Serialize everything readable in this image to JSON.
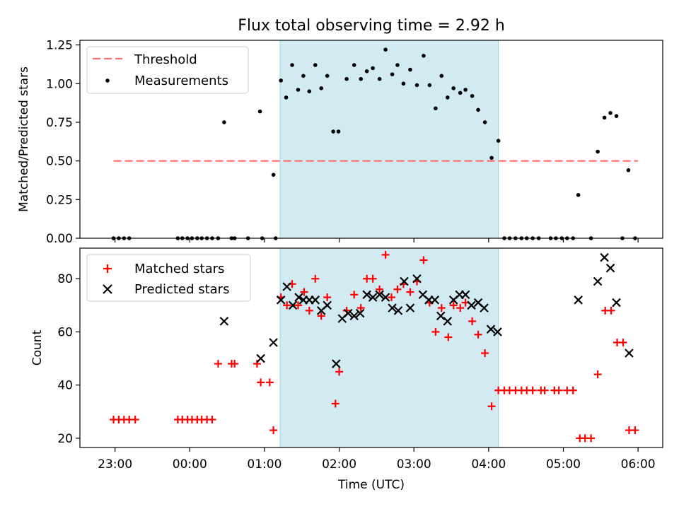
{
  "figure": {
    "title": "Flux total observing time = 2.92 h",
    "xlabel": "Time (UTC)",
    "x_ticks": [
      "23:00",
      "00:00",
      "01:00",
      "02:00",
      "03:00",
      "04:00",
      "05:00",
      "06:00"
    ]
  },
  "chart_data": [
    {
      "type": "scatter",
      "title": "Flux total observing time = 2.92 h",
      "ylabel": "Matched/Predicted stars",
      "x_unit": "hours since 22:00 UTC",
      "xlim": [
        0.53,
        8.33
      ],
      "ylim": [
        0,
        1.28
      ],
      "y_ticks": [
        "0.00",
        "0.25",
        "0.50",
        "0.75",
        "1.00",
        "1.25"
      ],
      "grid": false,
      "legend_position": "top-left",
      "shaded_interval": {
        "x": [
          3.21,
          6.13
        ],
        "color": "#add8e6"
      },
      "series": [
        {
          "name": "Threshold",
          "kind": "dashed-line",
          "color": "#ff7070",
          "points": [
            [
              0.98,
              0.5
            ],
            [
              8.0,
              0.5
            ]
          ]
        },
        {
          "name": "Measurements",
          "kind": "dots",
          "color": "#000000",
          "points": [
            [
              0.98,
              0
            ],
            [
              1.05,
              0
            ],
            [
              1.12,
              0
            ],
            [
              1.19,
              0
            ],
            [
              1.84,
              0
            ],
            [
              1.9,
              0
            ],
            [
              1.97,
              0
            ],
            [
              2.03,
              0
            ],
            [
              2.1,
              0
            ],
            [
              2.16,
              0
            ],
            [
              2.23,
              0
            ],
            [
              2.3,
              0
            ],
            [
              2.38,
              0
            ],
            [
              2.46,
              0.75
            ],
            [
              2.56,
              0
            ],
            [
              2.6,
              0
            ],
            [
              2.78,
              0
            ],
            [
              2.94,
              0.82
            ],
            [
              2.97,
              0
            ],
            [
              3.12,
              0.41
            ],
            [
              3.15,
              0
            ],
            [
              3.22,
              1.02
            ],
            [
              3.29,
              0.91
            ],
            [
              3.37,
              1.12
            ],
            [
              3.45,
              0.96
            ],
            [
              3.52,
              1.05
            ],
            [
              3.6,
              0.95
            ],
            [
              3.68,
              1.12
            ],
            [
              3.76,
              0.97
            ],
            [
              3.84,
              1.05
            ],
            [
              3.92,
              0.69
            ],
            [
              3.99,
              0.69
            ],
            [
              4.1,
              1.03
            ],
            [
              4.2,
              1.12
            ],
            [
              4.29,
              1.03
            ],
            [
              4.37,
              1.08
            ],
            [
              4.45,
              1.1
            ],
            [
              4.54,
              1.03
            ],
            [
              4.62,
              1.22
            ],
            [
              4.71,
              1.06
            ],
            [
              4.78,
              1.12
            ],
            [
              4.86,
              1.0
            ],
            [
              4.95,
              1.09
            ],
            [
              5.04,
              0.99
            ],
            [
              5.13,
              1.18
            ],
            [
              5.21,
              0.99
            ],
            [
              5.29,
              0.84
            ],
            [
              5.37,
              1.05
            ],
            [
              5.45,
              0.91
            ],
            [
              5.53,
              0.97
            ],
            [
              5.62,
              0.94
            ],
            [
              5.69,
              0.96
            ],
            [
              5.78,
              0.92
            ],
            [
              5.86,
              0.83
            ],
            [
              5.95,
              0.75
            ],
            [
              6.04,
              0.52
            ],
            [
              6.13,
              0.63
            ],
            [
              6.21,
              0
            ],
            [
              6.28,
              0
            ],
            [
              6.36,
              0
            ],
            [
              6.44,
              0
            ],
            [
              6.51,
              0
            ],
            [
              6.59,
              0
            ],
            [
              6.67,
              0
            ],
            [
              6.83,
              0
            ],
            [
              6.9,
              0
            ],
            [
              6.98,
              0
            ],
            [
              7.05,
              0
            ],
            [
              7.13,
              0
            ],
            [
              7.2,
              0.28
            ],
            [
              7.37,
              0
            ],
            [
              7.46,
              0.56
            ],
            [
              7.55,
              0.78
            ],
            [
              7.63,
              0.81
            ],
            [
              7.71,
              0.79
            ],
            [
              7.79,
              0
            ],
            [
              7.87,
              0.44
            ],
            [
              7.96,
              0
            ]
          ]
        }
      ]
    },
    {
      "type": "scatter",
      "ylabel": "Count",
      "x_unit": "hours since 22:00 UTC",
      "xlim": [
        0.53,
        8.33
      ],
      "ylim": [
        16.5,
        91.5
      ],
      "y_ticks": [
        "20",
        "40",
        "60",
        "80"
      ],
      "grid": false,
      "legend_position": "top-left",
      "shaded_interval": {
        "x": [
          3.21,
          6.13
        ],
        "color": "#add8e6"
      },
      "series": [
        {
          "name": "Matched stars",
          "marker": "+",
          "color": "#ff0000",
          "points": [
            [
              0.98,
              27
            ],
            [
              1.05,
              27
            ],
            [
              1.12,
              27
            ],
            [
              1.19,
              27
            ],
            [
              1.27,
              27
            ],
            [
              1.84,
              27
            ],
            [
              1.9,
              27
            ],
            [
              1.97,
              27
            ],
            [
              2.03,
              27
            ],
            [
              2.1,
              27
            ],
            [
              2.16,
              27
            ],
            [
              2.23,
              27
            ],
            [
              2.3,
              27
            ],
            [
              2.38,
              48
            ],
            [
              2.6,
              48
            ],
            [
              2.56,
              48
            ],
            [
              2.9,
              48
            ],
            [
              2.95,
              41
            ],
            [
              3.07,
              41
            ],
            [
              3.12,
              23
            ],
            [
              3.22,
              73
            ],
            [
              3.3,
              70
            ],
            [
              3.37,
              78
            ],
            [
              3.45,
              70
            ],
            [
              3.53,
              75
            ],
            [
              3.6,
              68
            ],
            [
              3.68,
              80
            ],
            [
              3.76,
              66
            ],
            [
              3.84,
              73
            ],
            [
              3.95,
              33
            ],
            [
              4.0,
              45
            ],
            [
              4.1,
              68
            ],
            [
              4.2,
              74
            ],
            [
              4.29,
              69
            ],
            [
              4.37,
              80
            ],
            [
              4.45,
              80
            ],
            [
              4.54,
              76
            ],
            [
              4.62,
              89
            ],
            [
              4.7,
              73
            ],
            [
              4.78,
              76
            ],
            [
              4.86,
              78
            ],
            [
              4.95,
              75
            ],
            [
              5.04,
              79
            ],
            [
              5.13,
              87
            ],
            [
              5.21,
              71
            ],
            [
              5.29,
              60
            ],
            [
              5.37,
              69
            ],
            [
              5.46,
              58
            ],
            [
              5.53,
              70
            ],
            [
              5.62,
              69
            ],
            [
              5.69,
              71
            ],
            [
              5.78,
              64
            ],
            [
              5.86,
              59
            ],
            [
              5.95,
              52
            ],
            [
              6.04,
              32
            ],
            [
              6.13,
              38
            ],
            [
              6.21,
              38
            ],
            [
              6.28,
              38
            ],
            [
              6.36,
              38
            ],
            [
              6.44,
              38
            ],
            [
              6.51,
              38
            ],
            [
              6.59,
              38
            ],
            [
              6.7,
              38
            ],
            [
              6.75,
              38
            ],
            [
              6.88,
              38
            ],
            [
              6.94,
              38
            ],
            [
              7.05,
              38
            ],
            [
              7.13,
              38
            ],
            [
              7.22,
              20
            ],
            [
              7.29,
              20
            ],
            [
              7.37,
              20
            ],
            [
              7.46,
              44
            ],
            [
              7.56,
              68
            ],
            [
              7.64,
              68
            ],
            [
              7.72,
              56
            ],
            [
              7.8,
              56
            ],
            [
              7.88,
              23
            ],
            [
              7.96,
              23
            ]
          ]
        },
        {
          "name": "Predicted stars",
          "marker": "x",
          "color": "#000000",
          "points": [
            [
              2.46,
              64
            ],
            [
              2.95,
              50
            ],
            [
              3.12,
              56
            ],
            [
              3.22,
              72
            ],
            [
              3.3,
              77
            ],
            [
              3.38,
              70
            ],
            [
              3.46,
              73
            ],
            [
              3.52,
              72
            ],
            [
              3.6,
              72
            ],
            [
              3.68,
              72
            ],
            [
              3.76,
              68
            ],
            [
              3.84,
              70
            ],
            [
              3.96,
              48
            ],
            [
              4.04,
              65
            ],
            [
              4.12,
              67
            ],
            [
              4.2,
              66
            ],
            [
              4.28,
              67
            ],
            [
              4.37,
              74
            ],
            [
              4.45,
              73
            ],
            [
              4.54,
              74
            ],
            [
              4.62,
              73
            ],
            [
              4.71,
              69
            ],
            [
              4.79,
              68
            ],
            [
              4.87,
              79
            ],
            [
              4.95,
              69
            ],
            [
              5.04,
              80
            ],
            [
              5.12,
              74
            ],
            [
              5.2,
              72
            ],
            [
              5.28,
              72
            ],
            [
              5.36,
              66
            ],
            [
              5.45,
              64
            ],
            [
              5.53,
              72
            ],
            [
              5.61,
              74
            ],
            [
              5.69,
              74
            ],
            [
              5.77,
              70
            ],
            [
              5.86,
              71
            ],
            [
              5.94,
              69
            ],
            [
              6.03,
              61
            ],
            [
              6.12,
              60
            ],
            [
              7.2,
              72
            ],
            [
              7.46,
              79
            ],
            [
              7.55,
              88
            ],
            [
              7.63,
              84
            ],
            [
              7.71,
              71
            ],
            [
              7.88,
              52
            ]
          ]
        }
      ]
    }
  ]
}
